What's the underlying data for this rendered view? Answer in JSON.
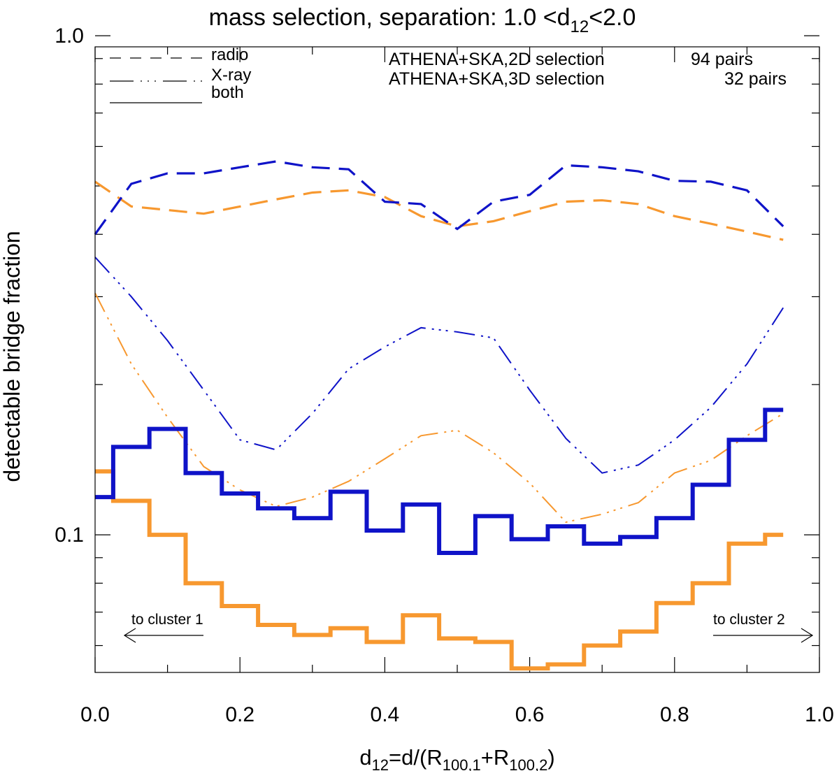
{
  "chart_data": {
    "type": "line",
    "title_main": "mass selection, separation:  1.0 <d",
    "title_sub": "12",
    "title_end": "<2.0",
    "ylabel": "detectable bridge fraction",
    "xlabel": {
      "p1": "d",
      "s1": "12",
      "p2": "=d/(R",
      "s2": "100,1",
      "p3": "+R",
      "s3": "100,2",
      "p4": ")"
    },
    "xlim": [
      0.0,
      1.0
    ],
    "ylim": [
      0.053,
      0.95
    ],
    "yscale": "log",
    "xticks": [
      {
        "v": 0.0,
        "label": "0.0"
      },
      {
        "v": 0.2,
        "label": "0.2"
      },
      {
        "v": 0.4,
        "label": "0.4"
      },
      {
        "v": 0.6,
        "label": "0.6"
      },
      {
        "v": 0.8,
        "label": "0.8"
      },
      {
        "v": 1.0,
        "label": "1.0"
      }
    ],
    "yticks_labeled": [
      {
        "v": 1.0,
        "label": "1.0"
      },
      {
        "v": 0.1,
        "label": "0.1"
      }
    ],
    "yticks_minor": [
      0.06,
      0.07,
      0.08,
      0.09,
      0.2,
      0.3,
      0.4,
      0.5,
      0.6,
      0.7,
      0.8,
      0.9
    ],
    "style_legend": [
      {
        "label": "radio",
        "dash": "dash"
      },
      {
        "label": "X-ray",
        "dash": "dashdotdot"
      },
      {
        "label": "both",
        "dash": "solid"
      }
    ],
    "selection_legend": [
      {
        "label": "ATHENA+SKA,2D selection",
        "count": "94 pairs",
        "color": "#f7982f"
      },
      {
        "label": "ATHENA+SKA,3D selection",
        "count": "32 pairs",
        "color": "#0f13c8"
      }
    ],
    "annotations": [
      {
        "text": "to cluster 1",
        "direction": "left"
      },
      {
        "text": "to cluster 2",
        "direction": "right"
      }
    ],
    "series": [
      {
        "name": "radio 2D",
        "color": "#f7982f",
        "style": "radio",
        "x": [
          0.0,
          0.05,
          0.15,
          0.25,
          0.3,
          0.35,
          0.4,
          0.45,
          0.5,
          0.55,
          0.6,
          0.65,
          0.7,
          0.75,
          0.8,
          0.85,
          0.9,
          0.95
        ],
        "y": [
          0.51,
          0.455,
          0.44,
          0.47,
          0.485,
          0.49,
          0.475,
          0.435,
          0.415,
          0.425,
          0.445,
          0.465,
          0.468,
          0.46,
          0.435,
          0.42,
          0.405,
          0.39
        ]
      },
      {
        "name": "radio 3D",
        "color": "#0f13c8",
        "style": "radio",
        "x": [
          0.0,
          0.05,
          0.1,
          0.15,
          0.2,
          0.25,
          0.3,
          0.35,
          0.4,
          0.45,
          0.5,
          0.55,
          0.6,
          0.65,
          0.7,
          0.75,
          0.8,
          0.85,
          0.9,
          0.95
        ],
        "y": [
          0.4,
          0.505,
          0.53,
          0.53,
          0.545,
          0.56,
          0.545,
          0.54,
          0.465,
          0.46,
          0.41,
          0.465,
          0.48,
          0.55,
          0.545,
          0.535,
          0.512,
          0.51,
          0.49,
          0.415
        ]
      },
      {
        "name": "X-ray 2D",
        "color": "#f7982f",
        "style": "xray",
        "x": [
          0.0,
          0.05,
          0.1,
          0.15,
          0.2,
          0.25,
          0.3,
          0.35,
          0.4,
          0.45,
          0.5,
          0.55,
          0.6,
          0.65,
          0.7,
          0.75,
          0.8,
          0.85,
          0.9,
          0.95
        ],
        "y": [
          0.305,
          0.22,
          0.172,
          0.137,
          0.123,
          0.114,
          0.119,
          0.128,
          0.142,
          0.158,
          0.162,
          0.146,
          0.127,
          0.106,
          0.11,
          0.116,
          0.133,
          0.141,
          0.158,
          0.175
        ]
      },
      {
        "name": "X-ray 3D",
        "color": "#0f13c8",
        "style": "xray",
        "x": [
          0.0,
          0.05,
          0.1,
          0.15,
          0.2,
          0.25,
          0.3,
          0.35,
          0.4,
          0.45,
          0.5,
          0.55,
          0.6,
          0.65,
          0.7,
          0.75,
          0.8,
          0.85,
          0.9,
          0.95
        ],
        "y": [
          0.36,
          0.3,
          0.245,
          0.195,
          0.155,
          0.148,
          0.175,
          0.215,
          0.238,
          0.26,
          0.255,
          0.248,
          0.195,
          0.156,
          0.133,
          0.138,
          0.155,
          0.18,
          0.22,
          0.285
        ]
      },
      {
        "name": "both 2D",
        "color": "#f7982f",
        "style": "both",
        "bin_edges": [
          0.0,
          0.025,
          0.075,
          0.125,
          0.175,
          0.225,
          0.275,
          0.325,
          0.375,
          0.425,
          0.475,
          0.525,
          0.575,
          0.625,
          0.675,
          0.725,
          0.775,
          0.825,
          0.875,
          0.925,
          0.95
        ],
        "values": [
          0.134,
          0.117,
          0.1,
          0.08,
          0.072,
          0.066,
          0.063,
          0.065,
          0.061,
          0.069,
          0.062,
          0.061,
          0.054,
          0.055,
          0.06,
          0.064,
          0.073,
          0.08,
          0.096,
          0.1
        ]
      },
      {
        "name": "both 3D",
        "color": "#0f13c8",
        "style": "both",
        "bin_edges": [
          0.0,
          0.025,
          0.075,
          0.125,
          0.175,
          0.225,
          0.275,
          0.325,
          0.375,
          0.425,
          0.475,
          0.525,
          0.575,
          0.625,
          0.675,
          0.725,
          0.775,
          0.825,
          0.875,
          0.925,
          0.95
        ],
        "values": [
          0.119,
          0.15,
          0.163,
          0.133,
          0.121,
          0.113,
          0.108,
          0.122,
          0.102,
          0.115,
          0.092,
          0.109,
          0.098,
          0.104,
          0.096,
          0.099,
          0.108,
          0.126,
          0.155,
          0.178
        ]
      }
    ]
  }
}
